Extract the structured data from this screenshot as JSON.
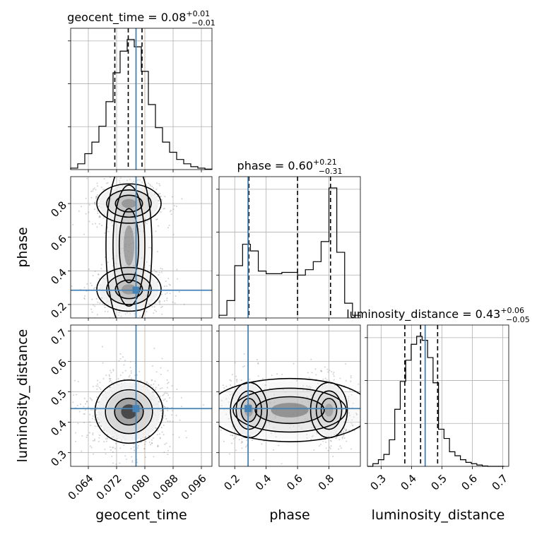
{
  "chart_data": {
    "type": "corner",
    "parameters": [
      "geocent_time",
      "phase",
      "luminosity_distance"
    ],
    "injection": {
      "geocent_time": 0.0775,
      "phase": 0.285,
      "luminosity_distance": 0.445
    },
    "marginals": [
      {
        "param": "geocent_time",
        "title_prefix": "geocent_time = 0.08",
        "title_plus": "+0.01",
        "title_minus": "−0.01",
        "quantiles": [
          0.0715,
          0.0753,
          0.0792
        ],
        "range": [
          0.059,
          0.099
        ],
        "hist_bins": [
          0.059,
          0.061,
          0.063,
          0.065,
          0.067,
          0.069,
          0.071,
          0.073,
          0.075,
          0.077,
          0.079,
          0.081,
          0.083,
          0.085,
          0.087,
          0.089,
          0.091,
          0.093,
          0.095,
          0.097,
          0.099
        ],
        "hist_counts": [
          1,
          4,
          11,
          19,
          30,
          47,
          67,
          82,
          90,
          85,
          68,
          45,
          29,
          19,
          12,
          7,
          4,
          2,
          1,
          0.3
        ]
      },
      {
        "param": "phase",
        "title_prefix": "phase = 0.60",
        "title_plus": "+0.21",
        "title_minus": "−0.31",
        "quantiles": [
          0.29,
          0.6,
          0.81
        ],
        "range": [
          0.1,
          1.0
        ],
        "hist_bins": [
          0.1,
          0.15,
          0.2,
          0.25,
          0.3,
          0.35,
          0.4,
          0.45,
          0.5,
          0.55,
          0.6,
          0.65,
          0.7,
          0.75,
          0.8,
          0.85,
          0.9,
          0.95,
          1.0
        ],
        "hist_counts": [
          2,
          13,
          39,
          55,
          50,
          35,
          33,
          33,
          34,
          34,
          32,
          36,
          42,
          57,
          97,
          49,
          11,
          2
        ]
      },
      {
        "param": "luminosity_distance",
        "title_prefix": "luminosity_distance = 0.43",
        "title_plus": "+0.06",
        "title_minus": "−0.05",
        "quantiles": [
          0.378,
          0.43,
          0.486
        ],
        "range": [
          0.255,
          0.72
        ],
        "hist_bins": [
          0.255,
          0.273,
          0.291,
          0.309,
          0.327,
          0.345,
          0.363,
          0.381,
          0.399,
          0.417,
          0.435,
          0.453,
          0.471,
          0.489,
          0.507,
          0.525,
          0.543,
          0.561,
          0.579,
          0.597,
          0.615,
          0.633,
          0.651,
          0.669,
          0.687,
          0.705
        ],
        "hist_counts": [
          0,
          2,
          5,
          9,
          20,
          43,
          64,
          80,
          92,
          98,
          95,
          82,
          63,
          28,
          21,
          11,
          8,
          5,
          3,
          2,
          1,
          0.3,
          0,
          0,
          0
        ]
      }
    ],
    "axes": {
      "geocent_time": {
        "label": "geocent_time",
        "range": [
          0.059,
          0.099
        ],
        "ticks": [
          0.064,
          0.072,
          0.08,
          0.088,
          0.096
        ],
        "tick_labels": [
          "0.064",
          "0.072",
          "0.080",
          "0.088",
          "0.096"
        ]
      },
      "phase": {
        "label": "phase",
        "range_x": [
          0.1,
          1.0
        ],
        "range_y": [
          0.12,
          0.96
        ],
        "ticks": [
          0.2,
          0.4,
          0.6,
          0.8
        ],
        "tick_labels": [
          "0.2",
          "0.4",
          "0.6",
          "0.8"
        ]
      },
      "luminosity_distance": {
        "label": "luminosity_distance",
        "range": [
          0.255,
          0.72
        ],
        "ticks": [
          0.3,
          0.4,
          0.5,
          0.6,
          0.7
        ],
        "tick_labels": [
          "0.3",
          "0.4",
          "0.5",
          "0.6",
          "0.7"
        ]
      }
    },
    "joint": [
      {
        "x": "geocent_time",
        "y": "phase",
        "modes": [
          {
            "x": 0.0755,
            "y": 0.8,
            "sx": 0.0035,
            "sy": 0.045,
            "w": 1.0
          },
          {
            "x": 0.0755,
            "y": 0.29,
            "sx": 0.0035,
            "sy": 0.05,
            "w": 0.75
          },
          {
            "x": 0.0755,
            "y": 0.55,
            "sx": 0.0025,
            "sy": 0.2,
            "w": 0.18
          }
        ]
      },
      {
        "x": "geocent_time",
        "y": "luminosity_distance",
        "modes": [
          {
            "x": 0.0755,
            "y": 0.435,
            "sx": 0.0037,
            "sy": 0.04,
            "w": 1.0
          }
        ]
      },
      {
        "x": "phase",
        "y": "luminosity_distance",
        "modes": [
          {
            "x": 0.8,
            "y": 0.44,
            "sx": 0.045,
            "sy": 0.035,
            "w": 1.0
          },
          {
            "x": 0.29,
            "y": 0.44,
            "sx": 0.045,
            "sy": 0.035,
            "w": 0.8
          },
          {
            "x": 0.55,
            "y": 0.44,
            "sx": 0.2,
            "sy": 0.04,
            "w": 0.25
          }
        ]
      }
    ],
    "colors": {
      "truth": "#4682b4",
      "hist": "#000000",
      "quantile": "#000000",
      "grid": "#b0b0b0",
      "scatter": "#7a7a7a"
    },
    "grid": true
  }
}
